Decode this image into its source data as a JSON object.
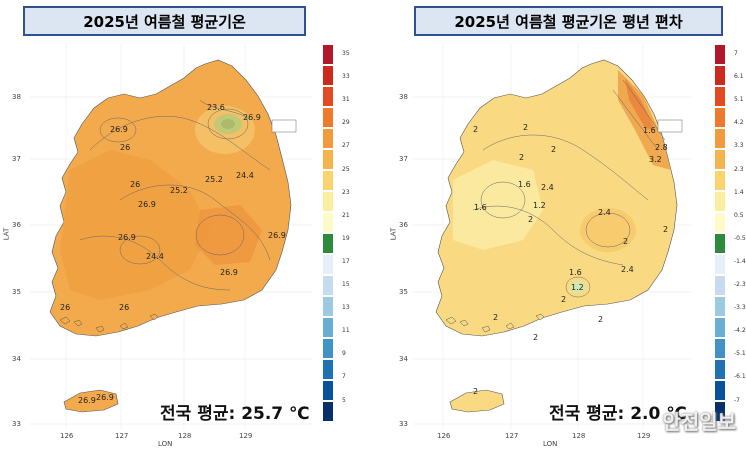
{
  "maps": [
    {
      "title": "2025년 여름철 평균기온",
      "xlabel": "LON",
      "ylabel": "LAT",
      "x_ticks": [
        "126",
        "127",
        "128",
        "129"
      ],
      "y_ticks": [
        "38",
        "37",
        "36",
        "35",
        "34",
        "33"
      ],
      "colorbar_labels": [
        "35",
        "33",
        "31",
        "29",
        "27",
        "25",
        "23",
        "21",
        "19",
        "17",
        "15",
        "13",
        "11",
        "9",
        "7",
        "5"
      ],
      "colorbar_colors": [
        "#b2182b",
        "#cc2a1f",
        "#e34a1f",
        "#ef7a2b",
        "#f39a3c",
        "#f6b44f",
        "#f8d36e",
        "#fbeea0",
        "#fdfbc8",
        "#2e8b3d",
        "#e6eef8",
        "#c7dbef",
        "#9ecae1",
        "#6aaed6",
        "#4292c6",
        "#2171b5",
        "#08519c",
        "#08306b"
      ],
      "contour_labels": [
        "23.6",
        "26.9",
        "26.9",
        "26",
        "25.2",
        "24.4",
        "26",
        "25.2",
        "26.9",
        "26.9",
        "26.9",
        "24.4",
        "26",
        "26",
        "26.9",
        "26.9",
        "26.9"
      ],
      "average_text": "전국 평균: 25.7 ℃"
    },
    {
      "title": "2025년 여름철 평균기온 평년 편차",
      "xlabel": "LON",
      "ylabel": "LAT",
      "x_ticks": [
        "126",
        "127",
        "128",
        "129"
      ],
      "y_ticks": [
        "38",
        "37",
        "36",
        "35",
        "34",
        "33"
      ],
      "colorbar_labels": [
        "7",
        "6.1",
        "5.1",
        "4.2",
        "3.3",
        "2.3",
        "1.4",
        "0.5",
        "-0.5",
        "-1.4",
        "-2.3",
        "-3.3",
        "-4.2",
        "-5.1",
        "-6.1",
        "-7"
      ],
      "colorbar_colors": [
        "#b2182b",
        "#cc2a1f",
        "#e34a1f",
        "#ef7a2b",
        "#f39a3c",
        "#f6b44f",
        "#f8d36e",
        "#fbeea0",
        "#fdfbc8",
        "#2e8b3d",
        "#e6eef8",
        "#c7dbef",
        "#9ecae1",
        "#6aaed6",
        "#4292c6",
        "#2171b5",
        "#08519c",
        "#08306b"
      ],
      "contour_labels": [
        "2",
        "2",
        "2",
        "2",
        "1.6",
        "2.4",
        "1.6",
        "1.2",
        "2",
        "2.4",
        "2.4",
        "2",
        "2",
        "1.6",
        "1.2",
        "2",
        "2",
        "2",
        "2",
        "2",
        "2.8",
        "3.2",
        "1.6"
      ],
      "average_text": "전국 평균: 2.0 ℃"
    }
  ],
  "watermark": "안전일보"
}
